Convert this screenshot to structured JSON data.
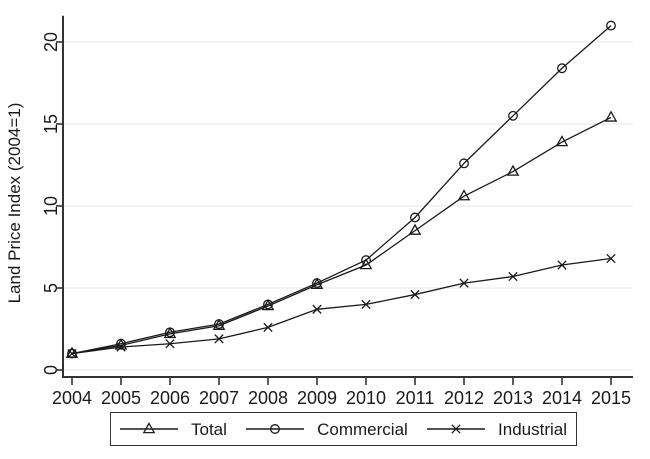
{
  "chart_data": {
    "type": "line",
    "title": "",
    "xlabel": "",
    "ylabel": "Land Price Index (2004=1)",
    "x": [
      2004,
      2005,
      2006,
      2007,
      2008,
      2009,
      2010,
      2011,
      2012,
      2013,
      2014,
      2015
    ],
    "series": [
      {
        "name": "Total",
        "marker": "triangle",
        "values": [
          1.0,
          1.5,
          2.2,
          2.7,
          3.9,
          5.2,
          6.4,
          8.5,
          10.6,
          12.1,
          13.9,
          15.4
        ]
      },
      {
        "name": "Commercial",
        "marker": "circle",
        "values": [
          1.0,
          1.6,
          2.3,
          2.8,
          4.0,
          5.3,
          6.7,
          9.3,
          12.6,
          15.5,
          18.4,
          21.0
        ]
      },
      {
        "name": "Industrial",
        "marker": "x",
        "values": [
          1.0,
          1.4,
          1.6,
          1.9,
          2.6,
          3.7,
          4.0,
          4.6,
          5.3,
          5.7,
          6.4,
          6.8
        ]
      }
    ],
    "yticks": [
      0,
      5,
      10,
      15,
      20
    ],
    "ylim": [
      0,
      21.6
    ],
    "grid": "horizontal",
    "legend_position": "bottom",
    "line_color": "#1a1a1a",
    "grid_color": "#efefed",
    "axis_color": "#333333",
    "background_color": "#ffffff"
  }
}
